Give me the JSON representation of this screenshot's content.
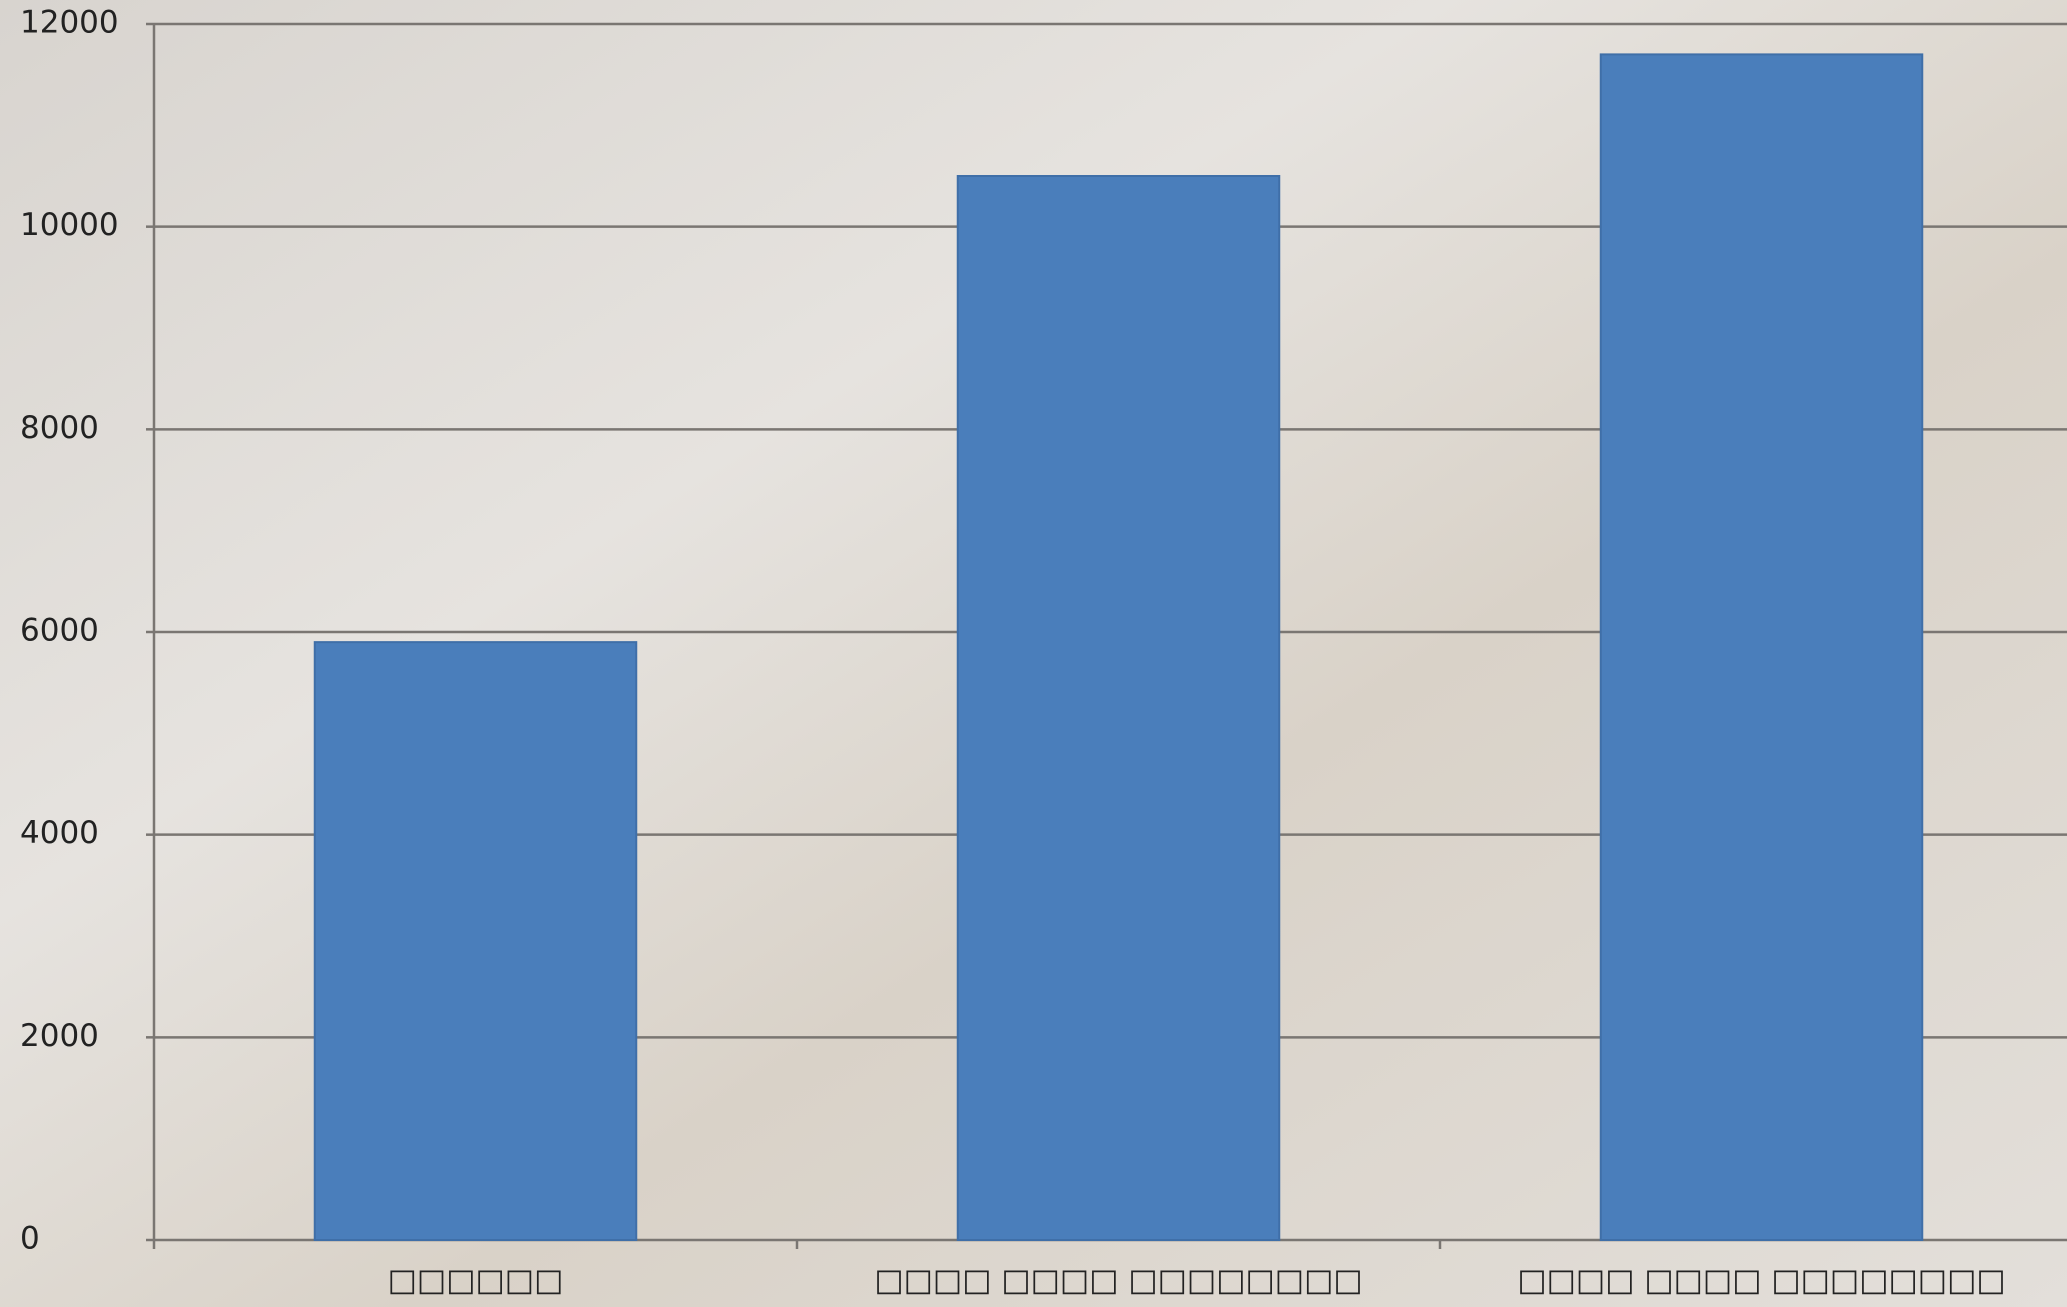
{
  "chart_data": {
    "type": "bar",
    "categories": [
      "□□□□□□",
      "□□□□ □□□□ □□□□□□□□",
      "□□□□ □□□□ □□□□□□□□"
    ],
    "values": [
      5900,
      10500,
      11700
    ],
    "color": "#4a7ebb",
    "ylim": [
      0,
      12000
    ],
    "yticks": [
      0,
      2000,
      4000,
      6000,
      8000,
      10000,
      12000
    ],
    "grid": true
  }
}
